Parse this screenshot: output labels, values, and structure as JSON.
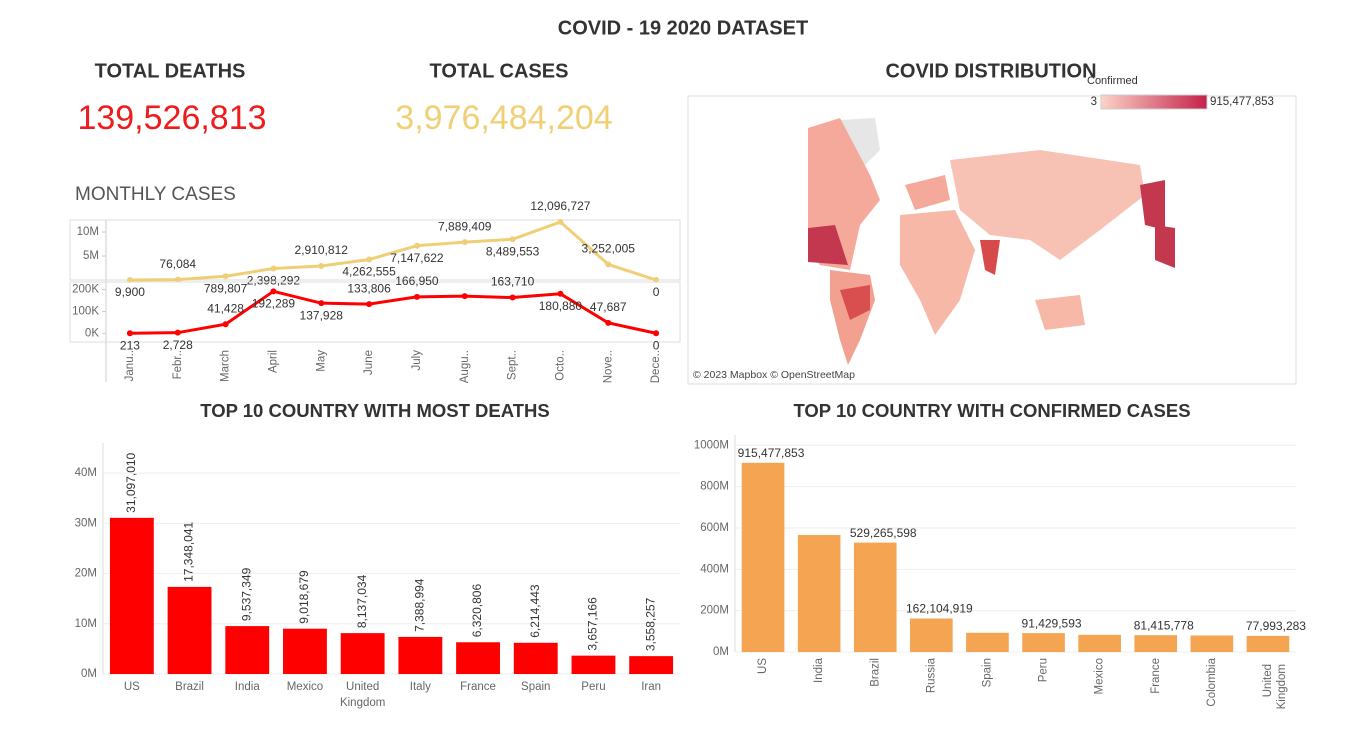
{
  "title": "COVID - 19 2020 DATASET",
  "kpis": [
    {
      "label": "TOTAL DEATHS",
      "value": "139,526,813"
    },
    {
      "label": "TOTAL CASES",
      "value": "3,976,484,204"
    }
  ],
  "chart_data": [
    {
      "type": "line",
      "title": "MONTHLY CASES",
      "categories": [
        "Janu..",
        "Febr..",
        "March",
        "April",
        "May",
        "June",
        "July",
        "Augu..",
        "Sept..",
        "Octo..",
        "Nove..",
        "Dece.."
      ],
      "panels": [
        {
          "color": "#efcf76",
          "values": [
            9900,
            76084,
            789807,
            2398292,
            2910812,
            4262555,
            7147622,
            7889409,
            8489553,
            12096727,
            3252005,
            0
          ],
          "value_labels": [
            "9,900",
            "76,084",
            "789,807",
            "2,398,292",
            "2,910,812",
            "4,262,555",
            "7,147,622",
            "7,889,409",
            "8,489,553",
            "12,096,727",
            "3,252,005",
            "0"
          ],
          "ylim": [
            0,
            12500000
          ],
          "yticks": [
            {
              "value": 5000000,
              "label": "5M"
            },
            {
              "value": 10000000,
              "label": "10M"
            }
          ]
        },
        {
          "color": "#ff0000",
          "values": [
            213,
            2728,
            41428,
            192289,
            137928,
            133806,
            166950,
            170000,
            163710,
            180880,
            47687,
            0
          ],
          "value_labels": [
            "213",
            "2,728",
            "41,428",
            "192,289",
            "137,928",
            "133,806",
            "166,950",
            null,
            "163,710",
            "180,880",
            "47,687",
            "0"
          ],
          "ylim": [
            -40000,
            235000
          ],
          "yticks": [
            {
              "value": 0,
              "label": "0K"
            },
            {
              "value": 100000,
              "label": "100K"
            },
            {
              "value": 200000,
              "label": "200K"
            }
          ]
        }
      ]
    },
    {
      "type": "map",
      "title": "COVID DISTRIBUTION",
      "legend": {
        "title": "Confirmed",
        "min": 3,
        "max": {
          "value": 915477853,
          "label": "915,477,853"
        },
        "colors": [
          "#fbd3c6",
          "#c4214b"
        ]
      },
      "credit": "© 2023 Mapbox © OpenStreetMap"
    },
    {
      "type": "bar",
      "title": "TOP 10 COUNTRY WITH MOST DEATHS",
      "color": "#ff0000",
      "categories": [
        "US",
        "Brazil",
        "India",
        "Mexico",
        "United Kingdom",
        "Italy",
        "France",
        "Spain",
        "Peru",
        "Iran"
      ],
      "values": [
        31097010,
        17348041,
        9537349,
        9018679,
        8137034,
        7388994,
        6320806,
        6214443,
        3657166,
        3558257
      ],
      "value_labels": [
        "31,097,010",
        "17,348,041",
        "9,537,349",
        "9,018,679",
        "8,137,034",
        "7,388,994",
        "6,320,806",
        "6,214,443",
        "3,657,166",
        "3,558,257"
      ],
      "ylim": [
        0,
        46000000
      ],
      "yticks": [
        {
          "value": 0,
          "label": "0M"
        },
        {
          "value": 10000000,
          "label": "10M"
        },
        {
          "value": 20000000,
          "label": "20M"
        },
        {
          "value": 30000000,
          "label": "30M"
        },
        {
          "value": 40000000,
          "label": "40M"
        }
      ]
    },
    {
      "type": "bar",
      "title": "TOP 10 COUNTRY WITH CONFIRMED CASES",
      "color": "#f5a552",
      "categories": [
        "US",
        "India",
        "Brazil",
        "Russia",
        "Spain",
        "Peru",
        "Mexico",
        "France",
        "Colombia",
        "United Kingdom"
      ],
      "values": [
        915477853,
        566000000,
        529265598,
        162104919,
        93000000,
        91429593,
        83000000,
        81415778,
        80000000,
        77993283
      ],
      "value_labels": [
        "915,477,853",
        null,
        "529,265,598",
        "162,104,919",
        null,
        "91,429,593",
        null,
        "81,415,778",
        null,
        "77,993,283"
      ],
      "ylim": [
        0,
        1050000000
      ],
      "yticks": [
        {
          "value": 0,
          "label": "0M"
        },
        {
          "value": 200000000,
          "label": "200M"
        },
        {
          "value": 400000000,
          "label": "400M"
        },
        {
          "value": 600000000,
          "label": "600M"
        },
        {
          "value": 800000000,
          "label": "800M"
        },
        {
          "value": 1000000000,
          "label": "1000M"
        }
      ]
    }
  ]
}
